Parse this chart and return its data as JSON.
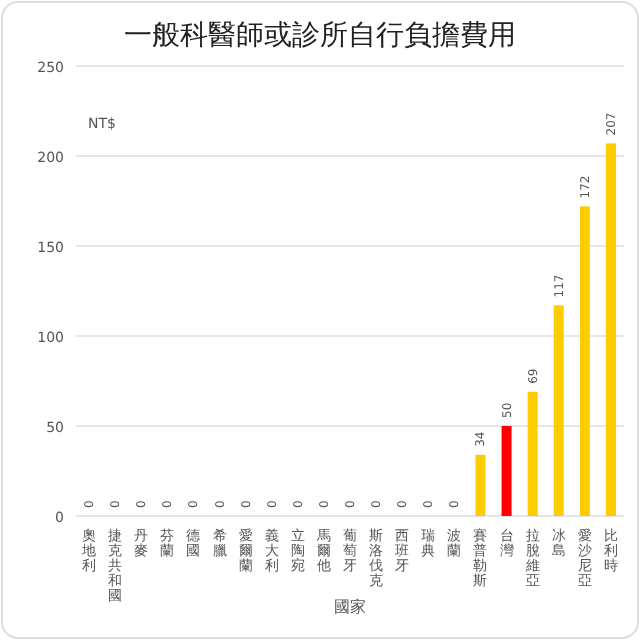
{
  "chart_data": {
    "type": "bar",
    "title": "一般科醫師或診所自行負擔費用",
    "xlabel": "國家",
    "ylabel": "NT$",
    "categories": [
      "奧地利",
      "捷克共和國",
      "丹麥",
      "芬蘭",
      "德國",
      "希臘",
      "愛爾蘭",
      "義大利",
      "立陶宛",
      "馬爾他",
      "葡萄牙",
      "斯洛伐克",
      "西班牙",
      "瑞典",
      "波蘭",
      "賽普勒斯",
      "台灣",
      "拉脫維亞",
      "冰島",
      "愛沙尼亞",
      "比利時"
    ],
    "values": [
      0,
      0,
      0,
      0,
      0,
      0,
      0,
      0,
      0,
      0,
      0,
      0,
      0,
      0,
      0,
      34,
      50,
      69,
      117,
      172,
      207
    ],
    "colors": [
      "#ffcc00",
      "#ffcc00",
      "#ffcc00",
      "#ffcc00",
      "#ffcc00",
      "#ffcc00",
      "#ffcc00",
      "#ffcc00",
      "#ffcc00",
      "#ffcc00",
      "#ffcc00",
      "#ffcc00",
      "#ffcc00",
      "#ffcc00",
      "#ffcc00",
      "#ffcc00",
      "#ff0000",
      "#ffcc00",
      "#ffcc00",
      "#ffcc00",
      "#ffcc00"
    ],
    "ylim": [
      0,
      250
    ],
    "yticks": [
      0,
      50,
      100,
      150,
      200,
      250
    ],
    "grid": "y",
    "data_labels": true
  }
}
